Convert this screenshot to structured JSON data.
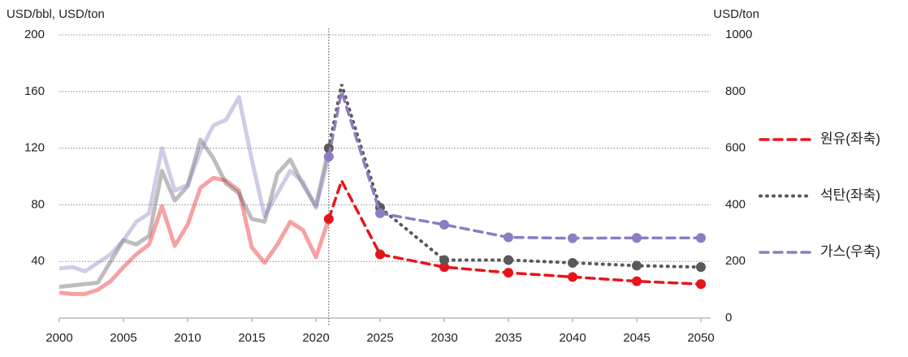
{
  "chart_data": {
    "type": "line",
    "y_label": "USD/bbl, USD/ton",
    "y2_label": "USD/ton",
    "x": [
      2000,
      2001,
      2002,
      2003,
      2004,
      2005,
      2006,
      2007,
      2008,
      2009,
      2010,
      2011,
      2012,
      2013,
      2014,
      2015,
      2016,
      2017,
      2018,
      2019,
      2020,
      2021,
      2022,
      2025,
      2030,
      2035,
      2040,
      2045,
      2050
    ],
    "forecast_from": 2021,
    "xlim": [
      2000,
      2050
    ],
    "xticks": [
      2000,
      2005,
      2010,
      2015,
      2020,
      2025,
      2030,
      2035,
      2040,
      2045,
      2050
    ],
    "ylim": [
      0,
      200
    ],
    "yticks": [
      40,
      80,
      120,
      160,
      200
    ],
    "y2lim": [
      0,
      1000
    ],
    "y2ticks": [
      0,
      200,
      400,
      600,
      800,
      1000
    ],
    "grid": true,
    "legend": "right",
    "series": [
      {
        "name": "원유(좌축)",
        "color": "#e8141b",
        "style": "dashed",
        "axis": "y",
        "values": [
          18,
          17,
          17,
          20,
          26,
          36,
          45,
          52,
          79,
          51,
          66,
          92,
          99,
          97,
          90,
          50,
          39,
          52,
          68,
          62,
          43,
          70,
          97,
          45,
          36,
          32,
          29,
          26,
          24
        ]
      },
      {
        "name": "석탄(좌축)",
        "color": "#595959",
        "style": "dotted",
        "axis": "y",
        "values": [
          22,
          23,
          24,
          25,
          40,
          55,
          52,
          58,
          104,
          83,
          93,
          126,
          113,
          95,
          88,
          70,
          68,
          102,
          112,
          94,
          79,
          120,
          165,
          78,
          41,
          41,
          39,
          37,
          36
        ]
      },
      {
        "name": "가스(우축)",
        "color": "#8e7cc3",
        "style": "dashed",
        "axis": "y2",
        "values": [
          175,
          180,
          165,
          195,
          225,
          275,
          340,
          370,
          600,
          450,
          470,
          590,
          680,
          700,
          780,
          560,
          360,
          440,
          520,
          480,
          390,
          570,
          800,
          370,
          330,
          285,
          282,
          283,
          283
        ]
      }
    ]
  }
}
